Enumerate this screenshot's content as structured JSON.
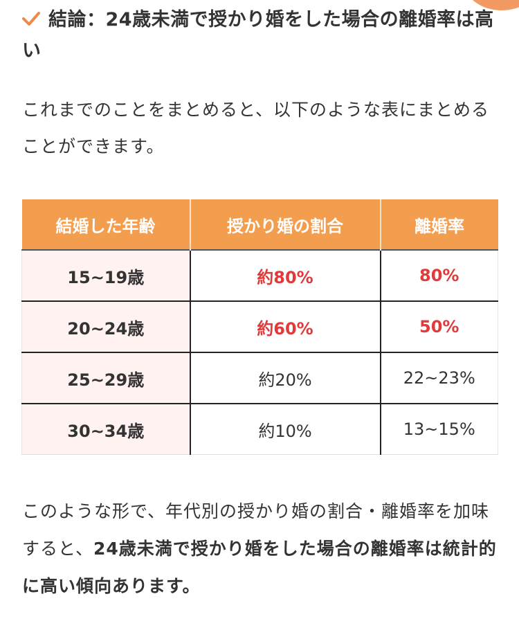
{
  "heading": {
    "icon": "check-icon",
    "text": "結論：24歳未満で授かり婚をした場合の離婚率は高い"
  },
  "intro": {
    "text": "これまでのことをまとめると、以下のような表にまとめることができます。"
  },
  "table": {
    "headers": [
      "結婚した年齢",
      "授かり婚の割合",
      "離婚率"
    ],
    "rows": [
      {
        "age": "15~19歳",
        "ratio": "約80%",
        "divorce": "80%"
      },
      {
        "age": "20~24歳",
        "ratio": "約60%",
        "divorce": "50%"
      },
      {
        "age": "25~29歳",
        "ratio": "約20%",
        "divorce": "22~23%"
      },
      {
        "age": "30~34歳",
        "ratio": "約10%",
        "divorce": "13~15%"
      }
    ]
  },
  "conclusion": {
    "plain": "このような形で、年代別の授かり婚の割合・離婚率を加味すると、",
    "bold": "24歳未満で授かり婚をした場合の離婚率は統計的に高い傾向あります。"
  },
  "colors": {
    "accent": "#f39d4f",
    "highlight": "#e03a3a",
    "age_cell_bg": "#fff2f0"
  }
}
